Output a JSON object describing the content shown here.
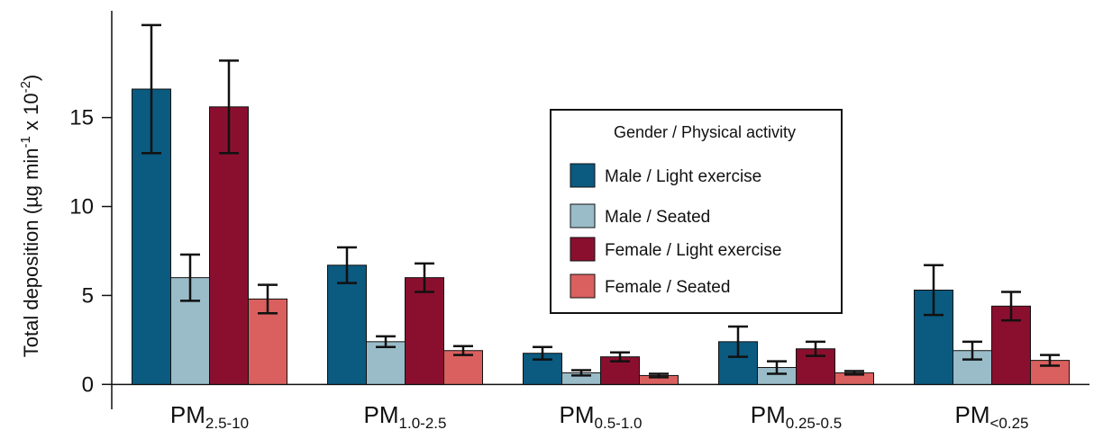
{
  "chart_data": {
    "type": "bar",
    "ylabel": [
      "Total deposition (µg min",
      "-1",
      " x 10",
      "-2",
      ")"
    ],
    "categories": [
      {
        "main": "PM",
        "sub": "2.5-10"
      },
      {
        "main": "PM",
        "sub": "1.0-2.5"
      },
      {
        "main": "PM",
        "sub": "0.5-1.0"
      },
      {
        "main": "PM",
        "sub": "0.25-0.5"
      },
      {
        "main": "PM",
        "sub": "<0.25"
      }
    ],
    "legend_title": "Gender / Physical activity",
    "series": [
      {
        "name": "Male / Light exercise",
        "color": "#0b5a80",
        "values": [
          16.6,
          6.7,
          1.75,
          2.4,
          5.3
        ],
        "errors": [
          3.6,
          1.0,
          0.35,
          0.85,
          1.4
        ]
      },
      {
        "name": "Male / Seated",
        "color": "#99bcc8",
        "values": [
          6.0,
          2.4,
          0.65,
          0.95,
          1.9
        ],
        "errors": [
          1.3,
          0.3,
          0.15,
          0.35,
          0.5
        ]
      },
      {
        "name": "Female / Light exercise",
        "color": "#8a0f2e",
        "values": [
          15.6,
          6.0,
          1.55,
          2.0,
          4.4
        ],
        "errors": [
          2.6,
          0.8,
          0.25,
          0.4,
          0.8
        ]
      },
      {
        "name": "Female / Seated",
        "color": "#d9605e",
        "values": [
          4.8,
          1.9,
          0.5,
          0.65,
          1.35
        ],
        "errors": [
          0.8,
          0.25,
          0.1,
          0.1,
          0.3
        ]
      }
    ],
    "ylim": [
      -1.4,
      21
    ],
    "yticks": [
      0,
      5,
      10,
      15
    ]
  }
}
